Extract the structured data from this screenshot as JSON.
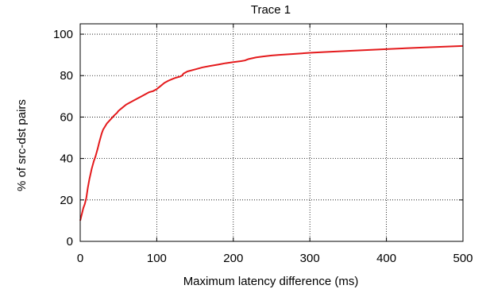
{
  "chart_data": {
    "type": "line",
    "title": "Trace 1",
    "xlabel": "Maximum latency difference (ms)",
    "ylabel": "% of src-dst pairs",
    "xlim": [
      0,
      500
    ],
    "ylim": [
      0,
      105
    ],
    "xticks": [
      0,
      100,
      200,
      300,
      400,
      500
    ],
    "yticks": [
      0,
      20,
      40,
      60,
      80,
      100
    ],
    "grid": true,
    "grid_style": "dotted",
    "line_color": "#e41a1c",
    "series": [
      {
        "x": [
          0,
          2,
          4,
          6,
          8,
          10,
          12,
          15,
          18,
          20,
          23,
          25,
          28,
          30,
          35,
          40,
          45,
          48,
          50,
          55,
          60,
          65,
          70,
          80,
          90,
          95,
          100,
          105,
          110,
          115,
          120,
          125,
          130,
          133,
          135,
          140,
          150,
          160,
          170,
          180,
          190,
          200,
          210,
          215,
          220,
          230,
          240,
          250,
          260,
          280,
          300,
          320,
          350,
          400,
          450,
          500
        ],
        "y": [
          10,
          13,
          16,
          18,
          21,
          26,
          30,
          35,
          39,
          41,
          45,
          48,
          52,
          54,
          57,
          59,
          61,
          62,
          63,
          64.5,
          66,
          67,
          68,
          70,
          72,
          72.5,
          73.5,
          75,
          76.5,
          77.5,
          78.3,
          79,
          79.5,
          80,
          81,
          82,
          83,
          84,
          84.7,
          85.3,
          86,
          86.5,
          87,
          87.3,
          88,
          88.8,
          89.3,
          89.7,
          90,
          90.5,
          91,
          91.4,
          91.9,
          92.8,
          93.6,
          94.3
        ]
      }
    ]
  }
}
